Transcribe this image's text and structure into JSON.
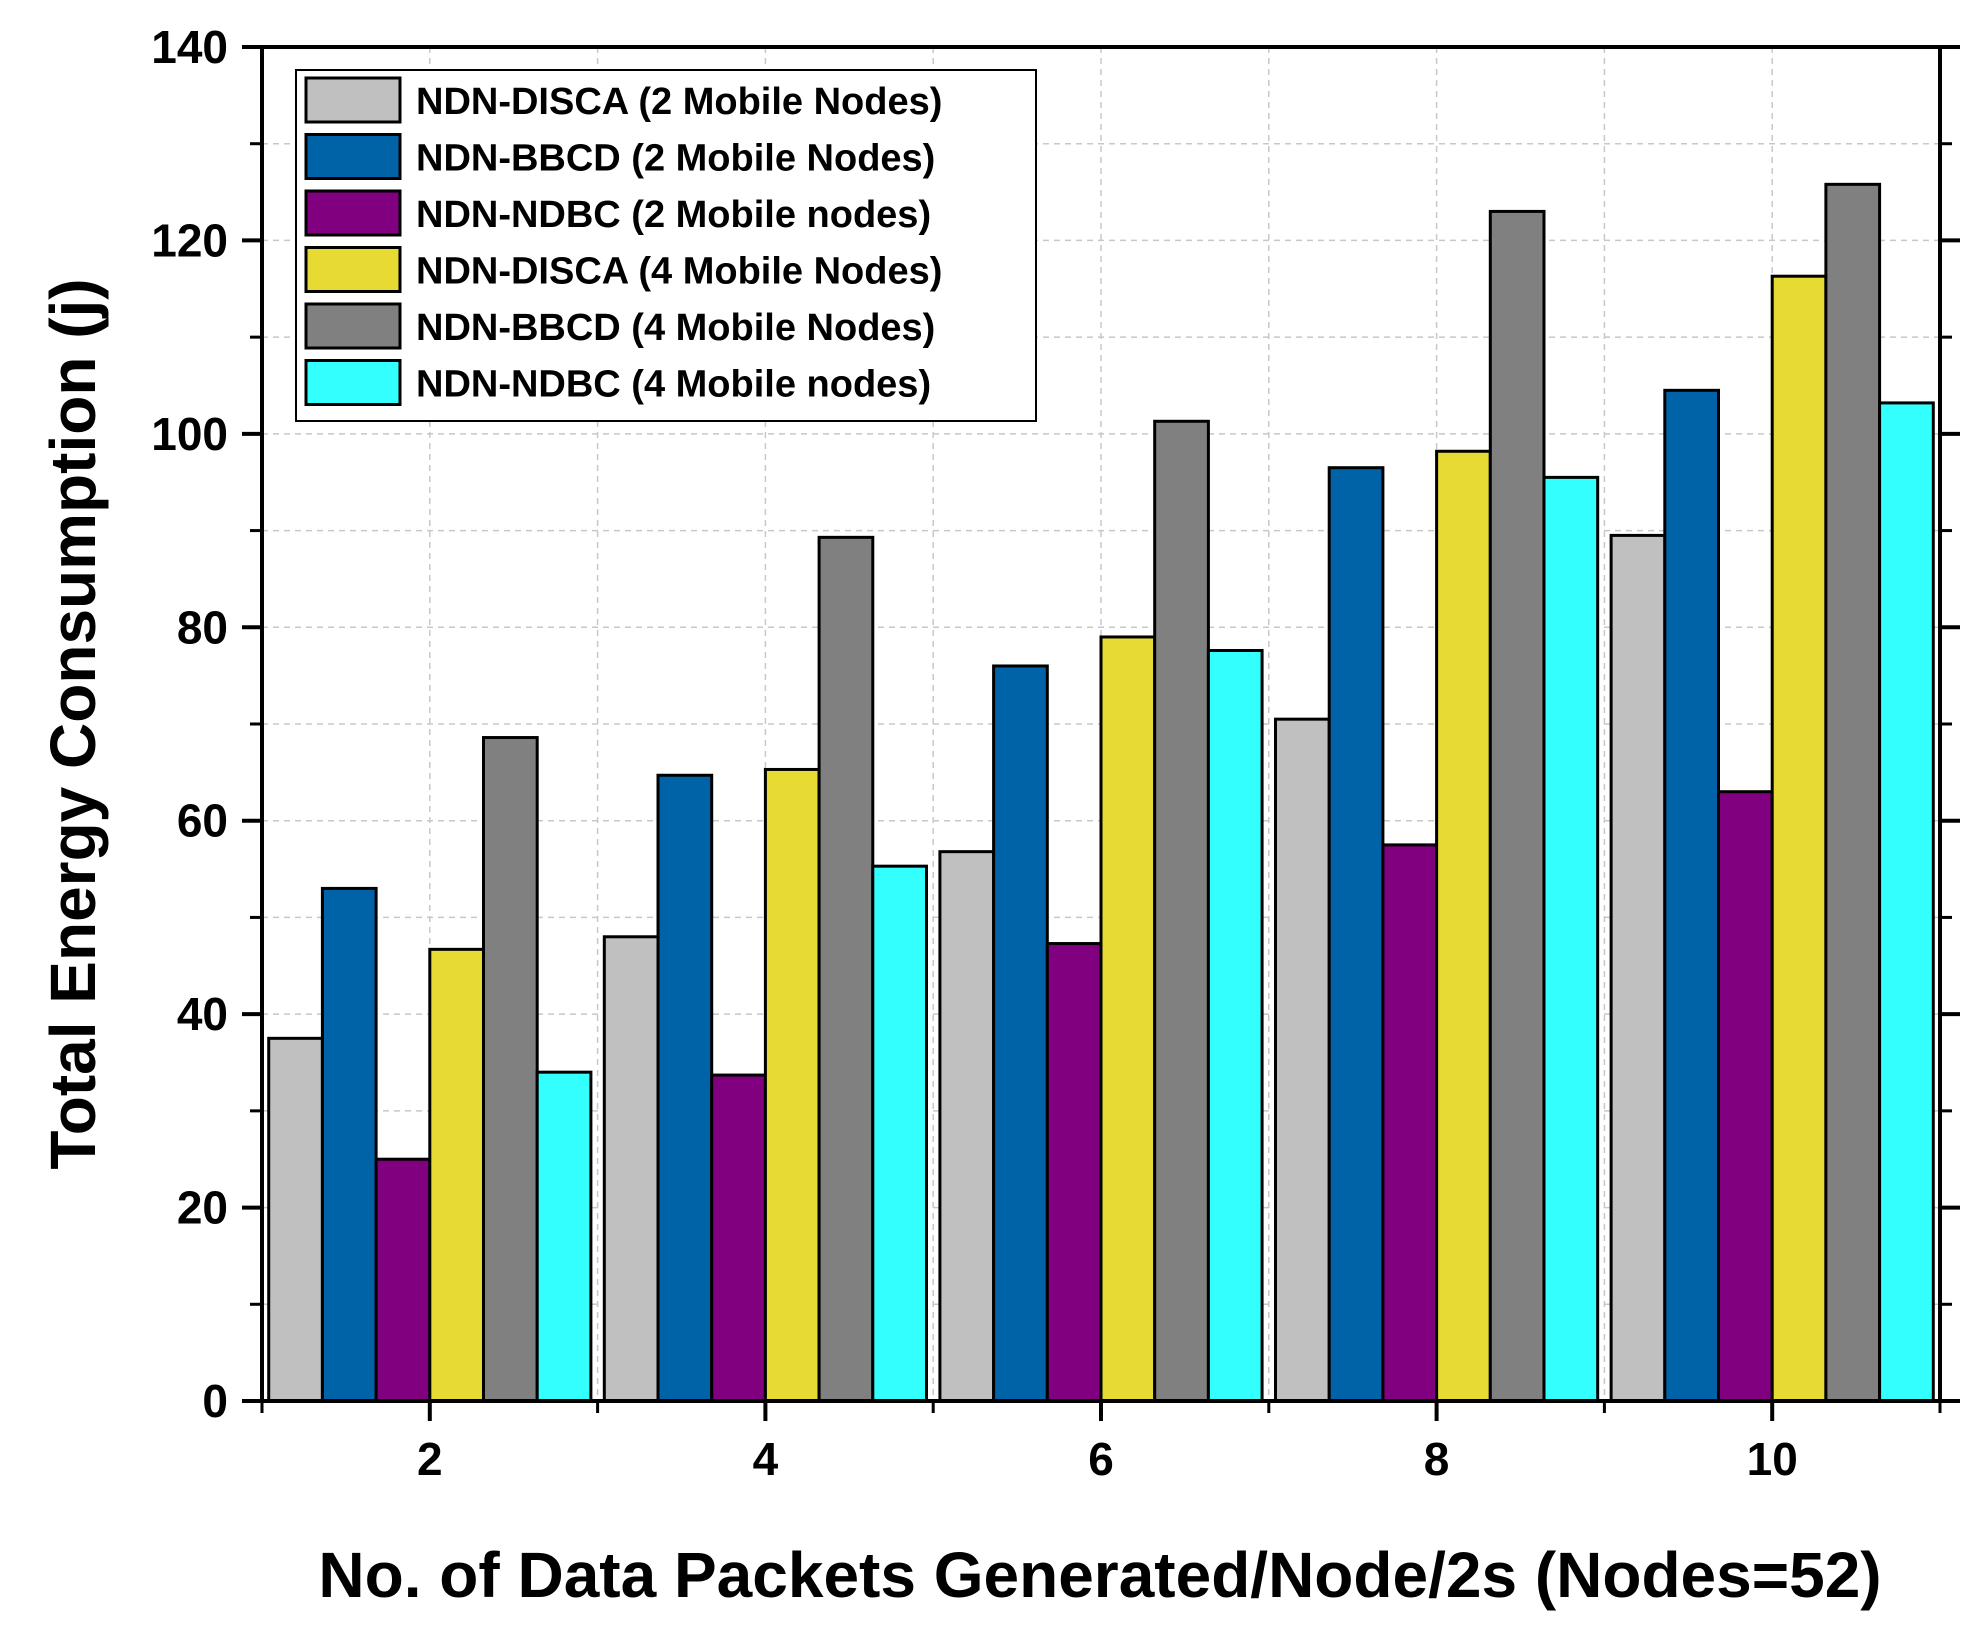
{
  "chart_data": {
    "type": "bar",
    "xlabel": "No. of Data Packets Generated/Node/2s (Nodes=52)",
    "ylabel": "Total Energy Consumption (j)",
    "categories": [
      "2",
      "4",
      "6",
      "8",
      "10"
    ],
    "ylim": [
      0,
      140
    ],
    "yticks": [
      "0",
      "20",
      "40",
      "60",
      "80",
      "100",
      "120",
      "140"
    ],
    "grid": true,
    "legend_position": "top-left",
    "series": [
      {
        "name": "NDN-DISCA (2 Mobile Nodes)",
        "color": "#c0c0c0",
        "values": [
          37.5,
          48.0,
          56.8,
          70.5,
          89.5
        ]
      },
      {
        "name": "NDN-BBCD (2 Mobile Nodes)",
        "color": "#0063a8",
        "values": [
          53.0,
          64.7,
          76.0,
          96.5,
          104.5
        ]
      },
      {
        "name": "NDN-NDBC (2 Mobile nodes)",
        "color": "#800080",
        "values": [
          25.0,
          33.7,
          47.3,
          57.5,
          63.0
        ]
      },
      {
        "name": "NDN-DISCA (4 Mobile Nodes)",
        "color": "#e6da33",
        "values": [
          46.7,
          65.3,
          79.0,
          98.2,
          116.3
        ]
      },
      {
        "name": "NDN-BBCD (4 Mobile Nodes)",
        "color": "#808080",
        "values": [
          68.6,
          89.3,
          101.3,
          123.0,
          125.8
        ]
      },
      {
        "name": "NDN-NDBC (4 Mobile nodes)",
        "color": "#33ffff",
        "values": [
          34.0,
          55.3,
          77.6,
          95.5,
          103.2
        ]
      }
    ]
  }
}
